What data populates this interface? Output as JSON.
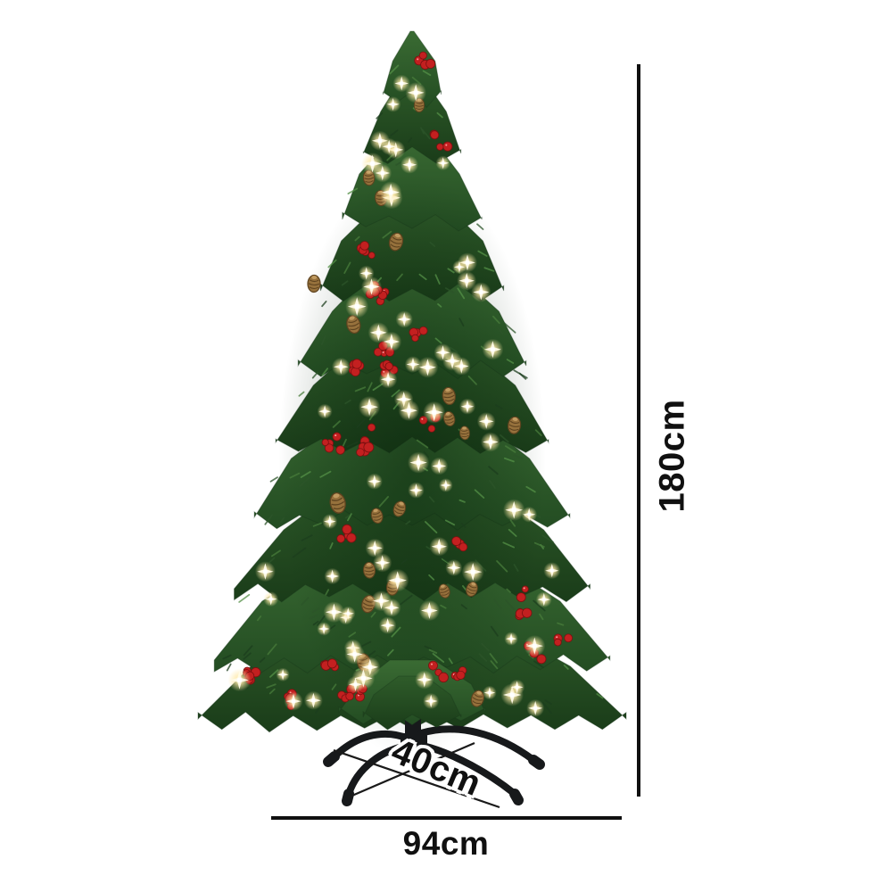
{
  "meta": {
    "description": "Pre-lit artificial Christmas tree (180cm) decorated with warm white lights, red berry clusters and pinecones, on a 4-leg black metal stand, shown with product dimensions on a white background",
    "background": "#ffffff"
  },
  "dimensions": {
    "height": {
      "label": "180cm"
    },
    "width": {
      "label": "94cm"
    },
    "base": {
      "label": "40cm"
    }
  },
  "colors": {
    "dimension_line": "#101010",
    "dimension_text": "#101010",
    "label_halo": "#ffffff",
    "tree_green_light": "#4a7f3c",
    "tree_green_mid": "#2e5c2b",
    "tree_green_dark": "#1b3d1a",
    "light_core": "#fffbe8",
    "light_glow": "#ffe9a8",
    "berry_red": "#c32020",
    "berry_shadow": "#7c1010",
    "pinecone": "#96713c",
    "pinecone_dark": "#5e431f",
    "pinecone_cap": "#c09a60",
    "stand_black": "#17191b",
    "thin_line": "#1a1a1a"
  },
  "scene": {
    "lights": 82,
    "berry_clusters": 27,
    "pinecones": 20,
    "needle_strokes": 300
  }
}
